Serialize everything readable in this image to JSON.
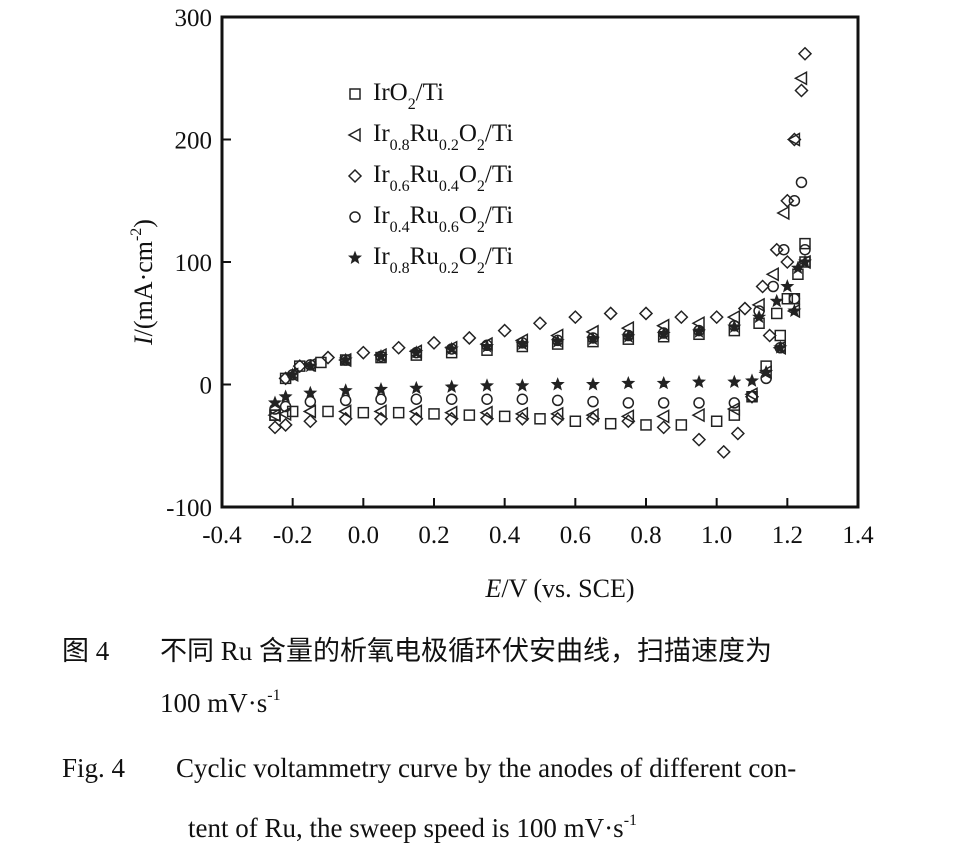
{
  "chart_data": {
    "type": "scatter",
    "xlabel": "E/V (vs. SCE)",
    "ylabel": "I/(mA·cm⁻²)",
    "xlim": [
      -0.4,
      1.4
    ],
    "ylim": [
      -100,
      300
    ],
    "x_ticks": [
      "-0.4",
      "-0.2",
      "0.0",
      "0.2",
      "0.4",
      "0.6",
      "0.8",
      "1.0",
      "1.2",
      "1.4"
    ],
    "y_ticks": [
      "300",
      "200",
      "100",
      "0",
      "-100"
    ],
    "grid": false,
    "legend_position": "top-left",
    "series": [
      {
        "name": "IrO2/Ti",
        "marker": "square",
        "legend": {
          "main": "IrO",
          "parts": [
            {
              "sub": "2"
            },
            {
              "text": "/Ti"
            }
          ]
        },
        "x": [
          -0.25,
          -0.22,
          -0.18,
          -0.12,
          -0.05,
          0.05,
          0.15,
          0.25,
          0.35,
          0.45,
          0.55,
          0.65,
          0.75,
          0.85,
          0.95,
          1.05,
          1.12,
          1.17,
          1.2,
          1.23,
          1.25,
          1.25,
          1.22,
          1.18,
          1.14,
          1.1,
          1.05,
          1.0,
          0.9,
          0.8,
          0.7,
          0.6,
          0.5,
          0.4,
          0.3,
          0.2,
          0.1,
          0.0,
          -0.1,
          -0.2,
          -0.25
        ],
        "y": [
          -25,
          5,
          15,
          18,
          20,
          22,
          24,
          26,
          28,
          31,
          33,
          35,
          37,
          39,
          41,
          44,
          50,
          58,
          70,
          90,
          115,
          100,
          70,
          40,
          15,
          -10,
          -25,
          -30,
          -33,
          -33,
          -32,
          -30,
          -28,
          -26,
          -25,
          -24,
          -23,
          -23,
          -22,
          -22,
          -25
        ]
      },
      {
        "name": "Ir0.8Ru0.2O2/Ti",
        "marker": "triangle-left",
        "legend": {
          "main": "Ir",
          "parts": [
            {
              "sub": "0.8"
            },
            {
              "text": "Ru"
            },
            {
              "sub": "0.2"
            },
            {
              "text": "O"
            },
            {
              "sub": "2"
            },
            {
              "text": "/Ti"
            }
          ]
        },
        "x": [
          -0.25,
          -0.2,
          -0.15,
          -0.05,
          0.05,
          0.15,
          0.25,
          0.35,
          0.45,
          0.55,
          0.65,
          0.75,
          0.85,
          0.95,
          1.05,
          1.12,
          1.16,
          1.19,
          1.22,
          1.24,
          1.25,
          1.22,
          1.18,
          1.14,
          1.1,
          1.05,
          0.95,
          0.85,
          0.75,
          0.65,
          0.55,
          0.45,
          0.35,
          0.25,
          0.15,
          0.05,
          -0.05,
          -0.15,
          -0.22
        ],
        "y": [
          -25,
          8,
          16,
          20,
          24,
          27,
          30,
          33,
          36,
          40,
          43,
          46,
          48,
          50,
          55,
          65,
          90,
          140,
          200,
          250,
          100,
          60,
          30,
          10,
          -8,
          -20,
          -25,
          -26,
          -26,
          -25,
          -24,
          -24,
          -23,
          -23,
          -22,
          -22,
          -22,
          -22,
          -24
        ]
      },
      {
        "name": "Ir0.6Ru0.4O2/Ti",
        "marker": "diamond",
        "legend": {
          "main": "Ir",
          "parts": [
            {
              "sub": "0.6"
            },
            {
              "text": "Ru"
            },
            {
              "sub": "0.4"
            },
            {
              "text": "O"
            },
            {
              "sub": "2"
            },
            {
              "text": "/Ti"
            }
          ]
        },
        "x": [
          -0.25,
          -0.22,
          -0.18,
          -0.1,
          0.0,
          0.1,
          0.2,
          0.3,
          0.4,
          0.5,
          0.6,
          0.7,
          0.8,
          0.9,
          1.0,
          1.08,
          1.13,
          1.17,
          1.2,
          1.22,
          1.24,
          1.25,
          1.2,
          1.15,
          1.1,
          1.06,
          1.02,
          0.95,
          0.85,
          0.75,
          0.65,
          0.55,
          0.45,
          0.35,
          0.25,
          0.15,
          0.05,
          -0.05,
          -0.15,
          -0.22
        ],
        "y": [
          -35,
          5,
          15,
          22,
          26,
          30,
          34,
          38,
          44,
          50,
          55,
          58,
          58,
          55,
          55,
          62,
          80,
          110,
          150,
          200,
          240,
          270,
          100,
          40,
          -10,
          -40,
          -55,
          -45,
          -35,
          -30,
          -28,
          -28,
          -28,
          -28,
          -28,
          -28,
          -28,
          -28,
          -30,
          -33
        ]
      },
      {
        "name": "Ir0.4Ru0.6O2/Ti",
        "marker": "circle",
        "legend": {
          "main": "Ir",
          "parts": [
            {
              "sub": "0.4"
            },
            {
              "text": "Ru"
            },
            {
              "sub": "0.6"
            },
            {
              "text": "O"
            },
            {
              "sub": "2"
            },
            {
              "text": "/Ti"
            }
          ]
        },
        "x": [
          -0.25,
          -0.2,
          -0.15,
          -0.05,
          0.05,
          0.15,
          0.25,
          0.35,
          0.45,
          0.55,
          0.65,
          0.75,
          0.85,
          0.95,
          1.05,
          1.12,
          1.16,
          1.19,
          1.22,
          1.24,
          1.25,
          1.22,
          1.18,
          1.14,
          1.1,
          1.05,
          0.95,
          0.85,
          0.75,
          0.65,
          0.55,
          0.45,
          0.35,
          0.25,
          0.15,
          0.05,
          -0.05,
          -0.15,
          -0.22
        ],
        "y": [
          -20,
          8,
          16,
          20,
          23,
          26,
          29,
          32,
          34,
          36,
          38,
          40,
          42,
          44,
          48,
          60,
          80,
          110,
          150,
          165,
          110,
          70,
          30,
          5,
          -10,
          -15,
          -15,
          -15,
          -15,
          -14,
          -13,
          -12,
          -12,
          -12,
          -12,
          -12,
          -13,
          -14,
          -18
        ]
      },
      {
        "name": "Ir0.8Ru0.2O2/Ti",
        "marker": "star",
        "legend": {
          "main": "Ir",
          "parts": [
            {
              "sub": "0.8"
            },
            {
              "text": "Ru"
            },
            {
              "sub": "0.2"
            },
            {
              "text": "O"
            },
            {
              "sub": "2"
            },
            {
              "text": "/Ti"
            }
          ]
        },
        "x": [
          -0.25,
          -0.2,
          -0.15,
          -0.05,
          0.05,
          0.15,
          0.25,
          0.35,
          0.45,
          0.55,
          0.65,
          0.75,
          0.85,
          0.95,
          1.05,
          1.12,
          1.17,
          1.2,
          1.23,
          1.25,
          1.22,
          1.18,
          1.14,
          1.1,
          1.05,
          0.95,
          0.85,
          0.75,
          0.65,
          0.55,
          0.45,
          0.35,
          0.25,
          0.15,
          0.05,
          -0.05,
          -0.15,
          -0.22
        ],
        "y": [
          -15,
          8,
          15,
          20,
          23,
          26,
          29,
          31,
          33,
          35,
          37,
          39,
          41,
          43,
          47,
          55,
          68,
          80,
          95,
          100,
          60,
          30,
          10,
          3,
          2,
          2,
          1,
          1,
          0,
          0,
          -1,
          -1,
          -2,
          -3,
          -4,
          -5,
          -7,
          -10
        ]
      }
    ]
  },
  "caption": {
    "cn_label": "图 4",
    "cn_line1": "不同 Ru 含量的析氧电极循环伏安曲线，扫描速度为",
    "cn_line2": "100 mV·s",
    "cn_line2_sup": "-1",
    "en_label": "Fig. 4",
    "en_line1": "Cyclic voltammetry curve by the anodes of different con-",
    "en_line2": "tent of Ru, the sweep speed is 100 mV·s",
    "en_line2_sup": "-1"
  }
}
